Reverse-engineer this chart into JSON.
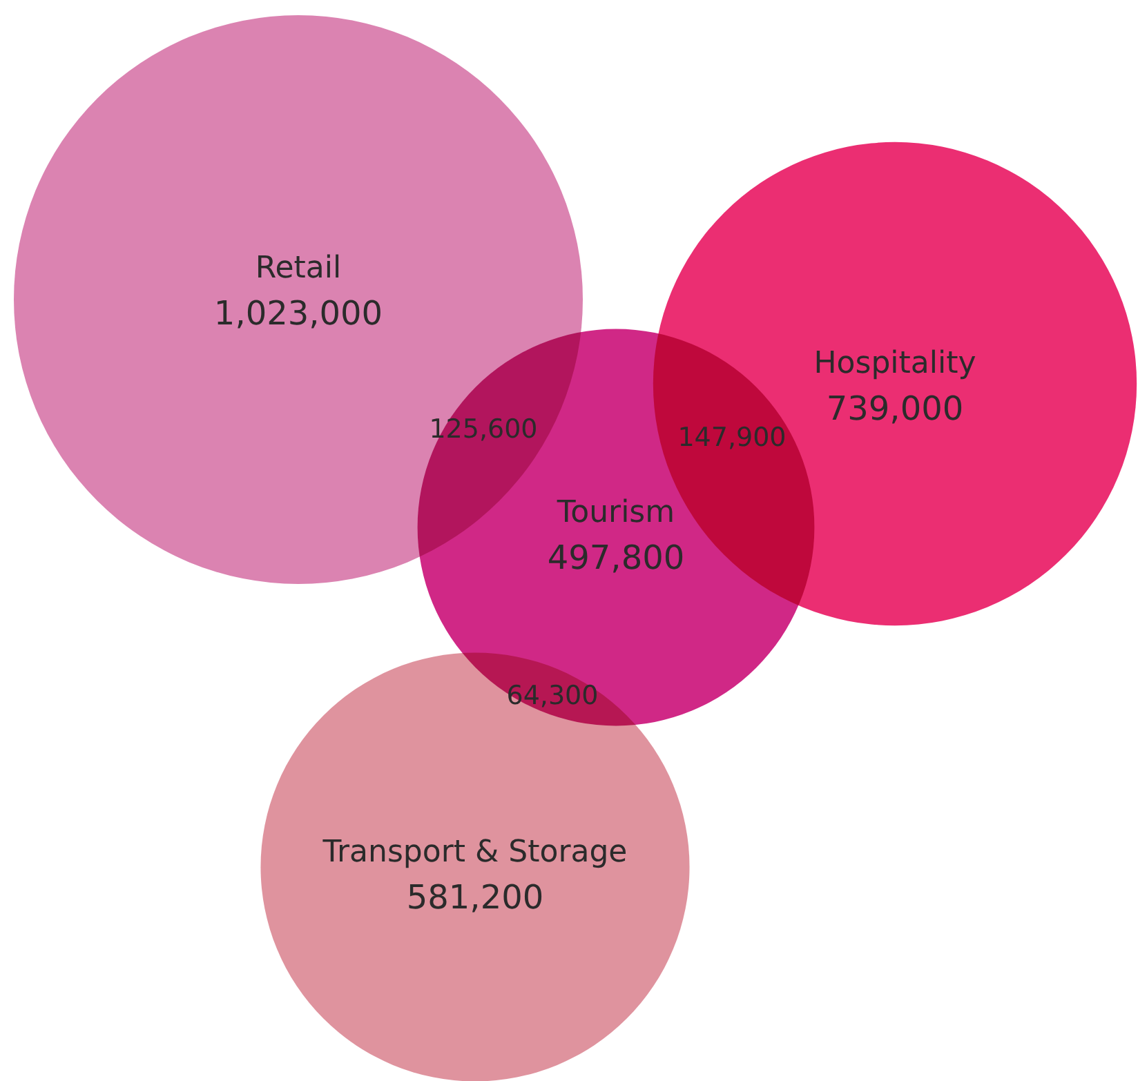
{
  "chart_data": {
    "type": "other",
    "categories": [
      "Retail",
      "Hospitality",
      "Tourism",
      "Transport & Storage"
    ],
    "values": [
      1023000,
      739000,
      497800,
      581200
    ],
    "value_labels": [
      "1,023,000",
      "739,000",
      "497,800",
      "581,200"
    ],
    "colors": [
      "#d672a6",
      "#e8115f",
      "#c90a75",
      "#db8491"
    ],
    "annotations": [
      "125,600",
      "147,900",
      "64,300"
    ]
  }
}
